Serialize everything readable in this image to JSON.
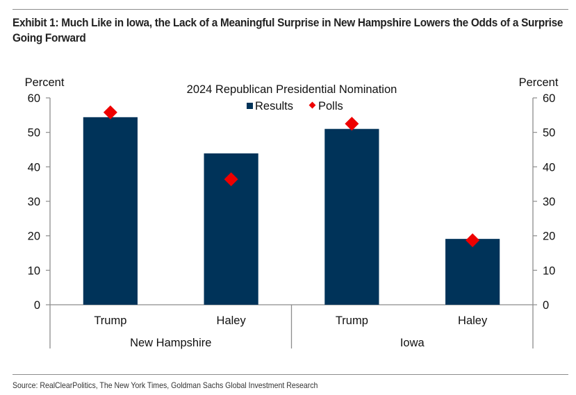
{
  "header": {
    "title": "Exhibit 1: Much Like in Iowa, the Lack of a Meaningful Surprise in New Hampshire Lowers the Odds of a Surprise Going Forward"
  },
  "footer": {
    "source": "Source: RealClearPolitics, The New York Times, Goldman Sachs Global Investment Research"
  },
  "colors": {
    "results": "#003359",
    "polls": "#ee0000",
    "axis": "#8c8c8c"
  },
  "chart_data": {
    "type": "bar",
    "title": "2024 Republican Presidential Nomination",
    "ylabel_left": "Percent",
    "ylabel_right": "Percent",
    "ylim": [
      0,
      60
    ],
    "yticks": [
      0,
      10,
      20,
      30,
      40,
      50,
      60
    ],
    "grid": false,
    "legend_position": "top-center",
    "legend": [
      {
        "name": "Results",
        "marker": "square"
      },
      {
        "name": "Polls",
        "marker": "diamond"
      }
    ],
    "categories": [
      "Trump",
      "Haley",
      "Trump",
      "Haley"
    ],
    "groups": [
      {
        "name": "New Hampshire",
        "span": [
          0,
          1
        ]
      },
      {
        "name": "Iowa",
        "span": [
          2,
          3
        ]
      }
    ],
    "series": [
      {
        "name": "Results",
        "kind": "bar",
        "values": [
          54.4,
          43.9,
          51.0,
          19.1
        ]
      },
      {
        "name": "Polls",
        "kind": "marker",
        "values": [
          55.8,
          36.4,
          52.5,
          18.7
        ]
      }
    ]
  }
}
